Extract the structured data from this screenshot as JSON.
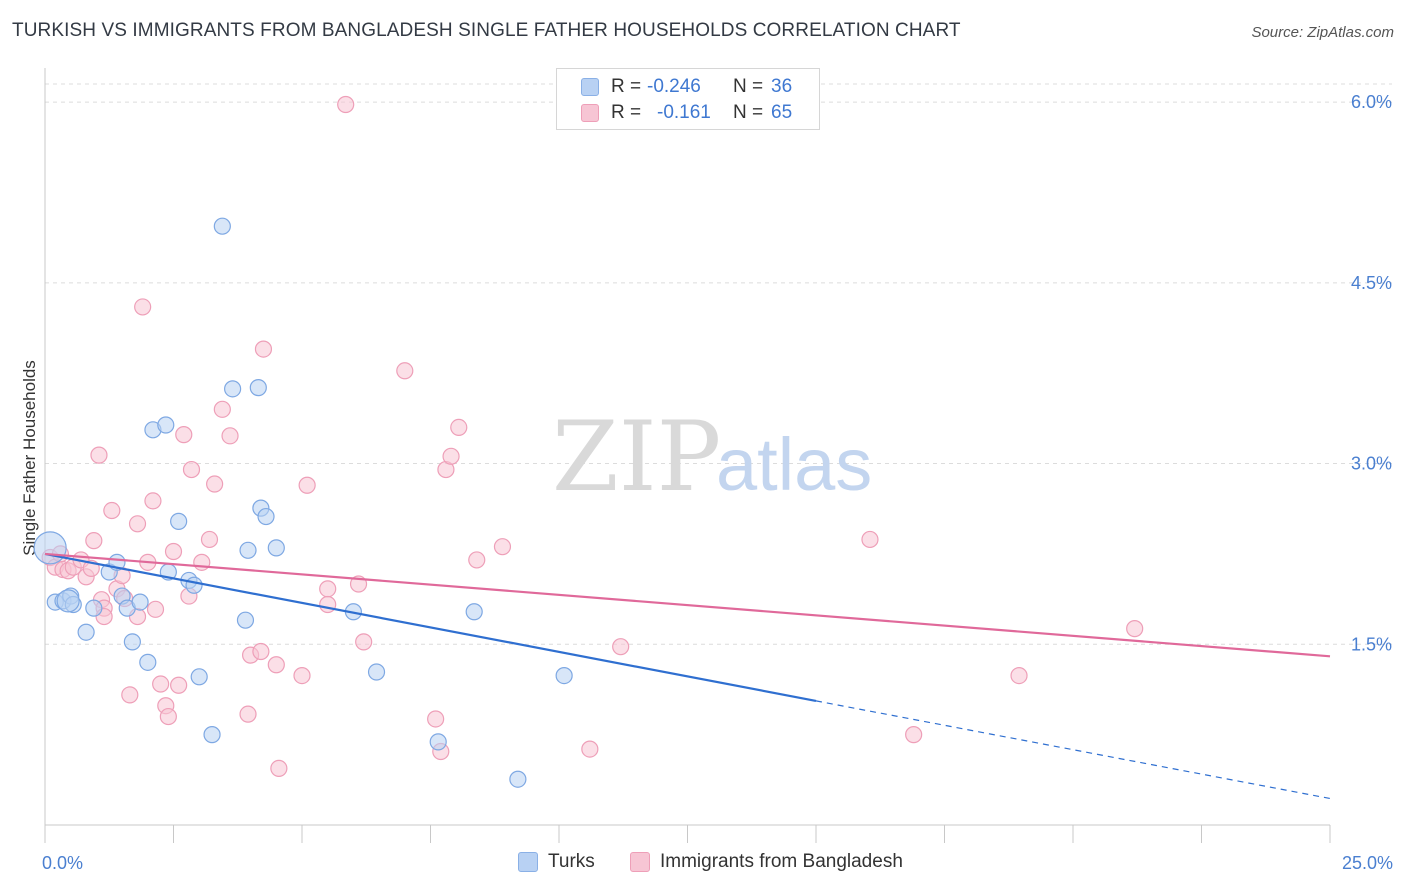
{
  "title": "TURKISH VS IMMIGRANTS FROM BANGLADESH SINGLE FATHER HOUSEHOLDS CORRELATION CHART",
  "source": "Source: ZipAtlas.com",
  "watermark": {
    "part1": "ZIP",
    "part2": "atlas"
  },
  "legend_top": {
    "rows": [
      {
        "label": "R =",
        "r": "-0.246",
        "n_label": "N =",
        "n": "36"
      },
      {
        "label": "R =",
        "r": "-0.161",
        "n_label": "N =",
        "n": "65"
      }
    ]
  },
  "legend_bottom": [
    "Turks",
    "Immigrants from Bangladesh"
  ],
  "colors": {
    "turks_fill": "#b8d1f3",
    "turks_stroke": "#7ea8e3",
    "turks_line": "#2f6fd0",
    "bangla_fill": "#f7c5d4",
    "bangla_stroke": "#ee9fb8",
    "bangla_line": "#e0699a",
    "tick_text": "#4a7fd0",
    "grid": "#dcdcdc"
  },
  "chart_data": {
    "type": "scatter",
    "title": "TURKISH VS IMMIGRANTS FROM BANGLADESH SINGLE FATHER HOUSEHOLDS CORRELATION CHART",
    "xlabel": "",
    "ylabel": "Single Father Households",
    "xlim": [
      0,
      25
    ],
    "ylim": [
      0,
      6.2
    ],
    "x_tick_labels": [
      "0.0%",
      "25.0%"
    ],
    "y_ticks": [
      1.5,
      3.0,
      4.5,
      6.0
    ],
    "y_tick_labels": [
      "1.5%",
      "3.0%",
      "4.5%",
      "6.0%"
    ],
    "grid": true,
    "series": [
      {
        "name": "Turks",
        "r": -0.246,
        "n": 36,
        "trend": {
          "x0": 0.0,
          "y0": 2.25,
          "x1": 15.0,
          "y1": 1.03,
          "dashed_to_x": 25.0,
          "dashed_to_y": 0.22
        },
        "points": [
          [
            0.1,
            2.3
          ],
          [
            0.2,
            1.85
          ],
          [
            0.35,
            1.86
          ],
          [
            0.5,
            1.9
          ],
          [
            0.55,
            1.83
          ],
          [
            0.8,
            1.6
          ],
          [
            0.95,
            1.8
          ],
          [
            1.25,
            2.1
          ],
          [
            1.4,
            2.18
          ],
          [
            1.5,
            1.9
          ],
          [
            1.6,
            1.8
          ],
          [
            1.7,
            1.52
          ],
          [
            1.85,
            1.85
          ],
          [
            2.0,
            1.35
          ],
          [
            2.1,
            3.28
          ],
          [
            2.35,
            3.32
          ],
          [
            2.4,
            2.1
          ],
          [
            2.6,
            2.52
          ],
          [
            2.8,
            2.03
          ],
          [
            2.9,
            1.99
          ],
          [
            3.0,
            1.23
          ],
          [
            3.25,
            0.75
          ],
          [
            3.45,
            4.97
          ],
          [
            3.65,
            3.62
          ],
          [
            3.9,
            1.7
          ],
          [
            3.95,
            2.28
          ],
          [
            4.15,
            3.63
          ],
          [
            4.2,
            2.63
          ],
          [
            4.3,
            2.56
          ],
          [
            4.5,
            2.3
          ],
          [
            6.0,
            1.77
          ],
          [
            6.45,
            1.27
          ],
          [
            7.65,
            0.69
          ],
          [
            8.35,
            1.77
          ],
          [
            9.2,
            0.38
          ],
          [
            10.1,
            1.24
          ]
        ]
      },
      {
        "name": "Immigrants from Bangladesh",
        "r": -0.161,
        "n": 65,
        "trend": {
          "x0": 0.0,
          "y0": 2.25,
          "x1": 25.0,
          "y1": 1.4
        },
        "points": [
          [
            0.1,
            2.22
          ],
          [
            0.2,
            2.14
          ],
          [
            0.3,
            2.25
          ],
          [
            0.35,
            2.12
          ],
          [
            0.45,
            2.11
          ],
          [
            0.55,
            2.14
          ],
          [
            0.7,
            2.2
          ],
          [
            0.8,
            2.06
          ],
          [
            0.9,
            2.13
          ],
          [
            0.95,
            2.36
          ],
          [
            1.05,
            3.07
          ],
          [
            1.1,
            1.87
          ],
          [
            1.15,
            1.8
          ],
          [
            1.15,
            1.73
          ],
          [
            1.3,
            2.61
          ],
          [
            1.4,
            1.96
          ],
          [
            1.5,
            2.07
          ],
          [
            1.55,
            1.88
          ],
          [
            1.65,
            1.08
          ],
          [
            1.8,
            2.5
          ],
          [
            1.8,
            1.73
          ],
          [
            1.9,
            4.3
          ],
          [
            2.0,
            2.18
          ],
          [
            2.1,
            2.69
          ],
          [
            2.15,
            1.79
          ],
          [
            2.25,
            1.17
          ],
          [
            2.35,
            0.99
          ],
          [
            2.4,
            0.9
          ],
          [
            2.5,
            2.27
          ],
          [
            2.6,
            1.16
          ],
          [
            2.7,
            3.24
          ],
          [
            2.8,
            1.9
          ],
          [
            2.85,
            2.95
          ],
          [
            3.05,
            2.18
          ],
          [
            3.2,
            2.37
          ],
          [
            3.3,
            2.83
          ],
          [
            3.45,
            3.45
          ],
          [
            3.6,
            3.23
          ],
          [
            3.95,
            0.92
          ],
          [
            4.0,
            1.41
          ],
          [
            4.2,
            1.44
          ],
          [
            4.25,
            3.95
          ],
          [
            4.5,
            1.33
          ],
          [
            4.55,
            0.47
          ],
          [
            5.0,
            1.24
          ],
          [
            5.1,
            2.82
          ],
          [
            5.5,
            1.96
          ],
          [
            5.5,
            1.83
          ],
          [
            5.85,
            5.98
          ],
          [
            6.1,
            2.0
          ],
          [
            6.2,
            1.52
          ],
          [
            7.0,
            3.77
          ],
          [
            7.6,
            0.88
          ],
          [
            7.7,
            0.61
          ],
          [
            7.8,
            2.95
          ],
          [
            7.9,
            3.06
          ],
          [
            8.05,
            3.3
          ],
          [
            8.4,
            2.2
          ],
          [
            8.9,
            2.31
          ],
          [
            10.6,
            0.63
          ],
          [
            11.2,
            1.48
          ],
          [
            16.05,
            2.37
          ],
          [
            16.9,
            0.75
          ],
          [
            18.95,
            1.24
          ],
          [
            21.2,
            1.63
          ]
        ]
      }
    ]
  }
}
